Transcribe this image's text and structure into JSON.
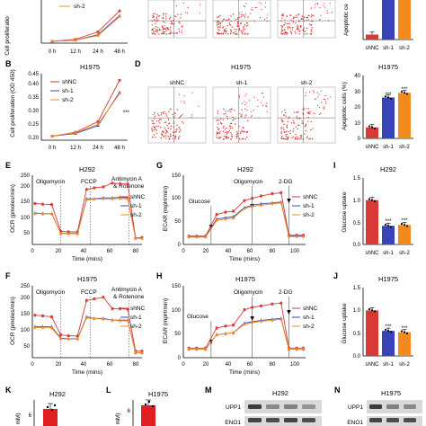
{
  "colors": {
    "shNC": "#d73a37",
    "sh1": "#3744b8",
    "sh2": "#f28b1e",
    "blot_bg": "#d9d9d9",
    "band": "#2a2a2a"
  },
  "panel_letters": {
    "B": "B",
    "D": "D",
    "E": "E",
    "F": "F",
    "G": "G",
    "H": "H",
    "I": "I",
    "J": "J",
    "K": "K",
    "L": "L",
    "M": "M",
    "N": "N"
  },
  "legend": {
    "shNC": "shNC",
    "sh1": "sh-1",
    "sh2": "sh-2"
  },
  "top": {
    "a_ylabel": "Cell proliferatio",
    "a_x_ticks": [
      "0 h",
      "12 h",
      "24 h",
      "48 h"
    ],
    "a_legend": "sh-2",
    "c_ylabel": "Apoptotic ce",
    "c_x_ticks": [
      "shNC",
      "sh-1",
      "sh-2"
    ]
  },
  "panel_b": {
    "title": "H1975",
    "ylabel": "Cell proliferation (OD 450)",
    "y_ticks": [
      "0.20",
      "0.25",
      "0.30",
      "0.35",
      "0.40",
      "0.45"
    ],
    "x_ticks": [
      "0 h",
      "12 h",
      "24 h",
      "48 h"
    ],
    "sig": "***"
  },
  "panel_d": {
    "title": "H1975",
    "labels": [
      "shNC",
      "sh-1",
      "sh-2"
    ]
  },
  "panel_d_bar": {
    "title": "H1975",
    "ylabel": "Apoptotic cells (%)",
    "y_ticks": [
      "0",
      "10",
      "20",
      "30",
      "40"
    ],
    "x_ticks": [
      "shNC",
      "sh-1",
      "sh-2"
    ],
    "sig": "***"
  },
  "panel_e": {
    "title": "H292",
    "ylabel": "OCR (pmoles/min)",
    "xlabel": "Time (mins)",
    "y_ticks": [
      "50",
      "100",
      "150",
      "200",
      "250"
    ],
    "x_ticks": [
      "0",
      "20",
      "40",
      "60",
      "80"
    ],
    "annotations": [
      "Oligomycin",
      "FCCP",
      "Antimycin A",
      "& Rotenone"
    ]
  },
  "panel_f": {
    "title": "H1975",
    "ylabel": "OCR (pmoles/min)",
    "xlabel": "Time (mins)",
    "y_ticks": [
      "50",
      "100",
      "150",
      "200",
      "250"
    ],
    "x_ticks": [
      "0",
      "20",
      "40",
      "60",
      "80"
    ],
    "annotations": [
      "Oligomycin",
      "FCCP",
      "Antimycin A",
      "& Rotenone"
    ]
  },
  "panel_g": {
    "title": "H292",
    "ylabel": "ECAR (mpH/min)",
    "xlabel": "Time (mins)",
    "y_ticks": [
      "0",
      "50",
      "100",
      "150"
    ],
    "x_ticks": [
      "0",
      "20",
      "40",
      "60",
      "80",
      "100"
    ],
    "annotations": [
      "Glucose",
      "Oligomycin",
      "2-DG"
    ]
  },
  "panel_h": {
    "title": "H1975",
    "ylabel": "ECAR (mpH/min)",
    "xlabel": "Time (mins)",
    "y_ticks": [
      "0",
      "50",
      "100",
      "150"
    ],
    "x_ticks": [
      "0",
      "20",
      "40",
      "60",
      "80",
      "100"
    ],
    "annotations": [
      "Glucose",
      "Oligomycin",
      "2-DG"
    ]
  },
  "panel_i": {
    "title": "H292",
    "ylabel": "Glucose uptake",
    "y_ticks": [
      "0.0",
      "0.5",
      "1.0",
      "1.5"
    ],
    "x_ticks": [
      "shNC",
      "sh-1",
      "sh-2"
    ],
    "sig": "***"
  },
  "panel_j": {
    "title": "H1975",
    "ylabel": "Glucose uptake",
    "y_ticks": [
      "0.0",
      "0.5",
      "1.0",
      "1.5"
    ],
    "x_ticks": [
      "shNC",
      "sh-1",
      "sh-2"
    ],
    "sig": "***"
  },
  "panel_k": {
    "title": "H292",
    "ylabel": "mM)",
    "y_ticks": [
      "6"
    ]
  },
  "panel_l": {
    "title": "H1975",
    "ylabel": "mM)",
    "y_ticks": [
      "6"
    ]
  },
  "panel_m": {
    "title": "H292",
    "rows": [
      "UPP1",
      "ENO1"
    ]
  },
  "panel_n": {
    "title": "H1975",
    "rows": [
      "UPP1",
      "ENO1"
    ]
  },
  "chart_data": [
    {
      "id": "A",
      "type": "line",
      "x": [
        "0 h",
        "12 h",
        "24 h",
        "48 h"
      ],
      "series": [
        {
          "values": [
            0.3,
            0.32,
            0.4,
            0.62
          ]
        },
        {
          "values": [
            0.3,
            0.31,
            0.37,
            0.57
          ]
        },
        {
          "name": "sh-2",
          "values": [
            0.3,
            0.31,
            0.36,
            0.56
          ]
        }
      ]
    },
    {
      "id": "B",
      "type": "line",
      "title": "H1975",
      "ylabel": "Cell proliferation (OD 450)",
      "ylim": [
        0.2,
        0.45
      ],
      "x": [
        "0 h",
        "12 h",
        "24 h",
        "48 h"
      ],
      "series": [
        {
          "name": "shNC",
          "values": [
            0.215,
            0.23,
            0.27,
            0.425
          ]
        },
        {
          "name": "sh-1",
          "values": [
            0.215,
            0.225,
            0.255,
            0.38
          ]
        },
        {
          "name": "sh-2",
          "values": [
            0.215,
            0.228,
            0.26,
            0.375
          ]
        }
      ]
    },
    {
      "id": "C",
      "type": "bar",
      "categories": [
        "shNC",
        "sh-1",
        "sh-2"
      ],
      "values": [
        5,
        40,
        40
      ]
    },
    {
      "id": "D_bar",
      "type": "bar",
      "title": "H1975",
      "ylabel": "Apoptotic cells (%)",
      "ylim": [
        0,
        40
      ],
      "categories": [
        "shNC",
        "sh-1",
        "sh-2"
      ],
      "values": [
        7,
        26,
        29
      ]
    },
    {
      "id": "E",
      "type": "line",
      "title": "H292",
      "ylabel": "OCR (pmoles/min)",
      "xlabel": "Time (mins)",
      "ylim": [
        30,
        250
      ],
      "xlim": [
        0,
        85
      ],
      "x": [
        2,
        8,
        15,
        22,
        28,
        35,
        42,
        48,
        55,
        62,
        68,
        74,
        80,
        85
      ],
      "series": [
        {
          "name": "shNC",
          "values": [
            160,
            158,
            157,
            72,
            70,
            70,
            205,
            210,
            213,
            225,
            223,
            222,
            50,
            52
          ]
        },
        {
          "name": "sh-1",
          "values": [
            130,
            128,
            128,
            66,
            65,
            65,
            175,
            175,
            178,
            178,
            180,
            178,
            50,
            50
          ]
        },
        {
          "name": "sh-2",
          "values": [
            128,
            128,
            127,
            65,
            64,
            64,
            172,
            174,
            175,
            175,
            176,
            175,
            49,
            49
          ]
        }
      ]
    },
    {
      "id": "F",
      "type": "line",
      "title": "H1975",
      "ylabel": "OCR (pmoles/min)",
      "xlabel": "Time (mins)",
      "ylim": [
        30,
        250
      ],
      "xlim": [
        0,
        85
      ],
      "x": [
        2,
        8,
        15,
        22,
        28,
        35,
        42,
        48,
        55,
        62,
        68,
        74,
        80,
        85
      ],
      "series": [
        {
          "name": "shNC",
          "values": [
            160,
            158,
            155,
            100,
            97,
            96,
            205,
            210,
            215,
            180,
            180,
            178,
            50,
            50
          ]
        },
        {
          "name": "sh-1",
          "values": [
            125,
            125,
            124,
            90,
            88,
            88,
            155,
            150,
            150,
            145,
            145,
            145,
            45,
            45
          ]
        },
        {
          "name": "sh-2",
          "values": [
            122,
            122,
            121,
            88,
            87,
            87,
            152,
            150,
            148,
            145,
            143,
            143,
            45,
            45
          ]
        }
      ]
    },
    {
      "id": "G",
      "type": "line",
      "title": "H292",
      "ylabel": "ECAR (mpH/min)",
      "xlabel": "Time (mins)",
      "ylim": [
        0,
        150
      ],
      "xlim": [
        0,
        110
      ],
      "x": [
        5,
        12,
        20,
        30,
        38,
        45,
        55,
        62,
        70,
        80,
        88,
        95,
        102,
        108
      ],
      "series": [
        {
          "name": "shNC",
          "values": [
            18,
            18,
            18,
            65,
            70,
            72,
            95,
            100,
            105,
            110,
            112,
            20,
            20,
            20
          ]
        },
        {
          "name": "sh-1",
          "values": [
            17,
            17,
            17,
            55,
            58,
            60,
            80,
            85,
            88,
            90,
            92,
            18,
            18,
            18
          ]
        },
        {
          "name": "sh-2",
          "values": [
            16,
            16,
            16,
            52,
            55,
            57,
            78,
            82,
            85,
            88,
            90,
            17,
            17,
            17
          ]
        }
      ]
    },
    {
      "id": "H",
      "type": "line",
      "title": "H1975",
      "ylabel": "ECAR (mpH/min)",
      "xlabel": "Time (mins)",
      "ylim": [
        0,
        150
      ],
      "xlim": [
        0,
        110
      ],
      "x": [
        5,
        12,
        20,
        30,
        38,
        45,
        55,
        62,
        70,
        80,
        88,
        95,
        102,
        108
      ],
      "series": [
        {
          "name": "shNC",
          "values": [
            20,
            20,
            20,
            62,
            66,
            68,
            100,
            105,
            108,
            112,
            114,
            20,
            20,
            20
          ]
        },
        {
          "name": "sh-1",
          "values": [
            18,
            18,
            18,
            48,
            50,
            52,
            72,
            75,
            78,
            80,
            82,
            18,
            18,
            18
          ]
        },
        {
          "name": "sh-2",
          "values": [
            18,
            18,
            18,
            48,
            50,
            52,
            70,
            73,
            76,
            78,
            80,
            18,
            18,
            18
          ]
        }
      ]
    },
    {
      "id": "I",
      "type": "bar",
      "title": "H292",
      "ylabel": "Glucose uptake",
      "ylim": [
        0,
        1.5
      ],
      "categories": [
        "shNC",
        "sh-1",
        "sh-2"
      ],
      "values": [
        1.0,
        0.42,
        0.44
      ]
    },
    {
      "id": "J",
      "type": "bar",
      "title": "H1975",
      "ylabel": "Glucose uptake",
      "ylim": [
        0,
        1.5
      ],
      "categories": [
        "shNC",
        "sh-1",
        "sh-2"
      ],
      "values": [
        1.0,
        0.55,
        0.52
      ]
    }
  ]
}
